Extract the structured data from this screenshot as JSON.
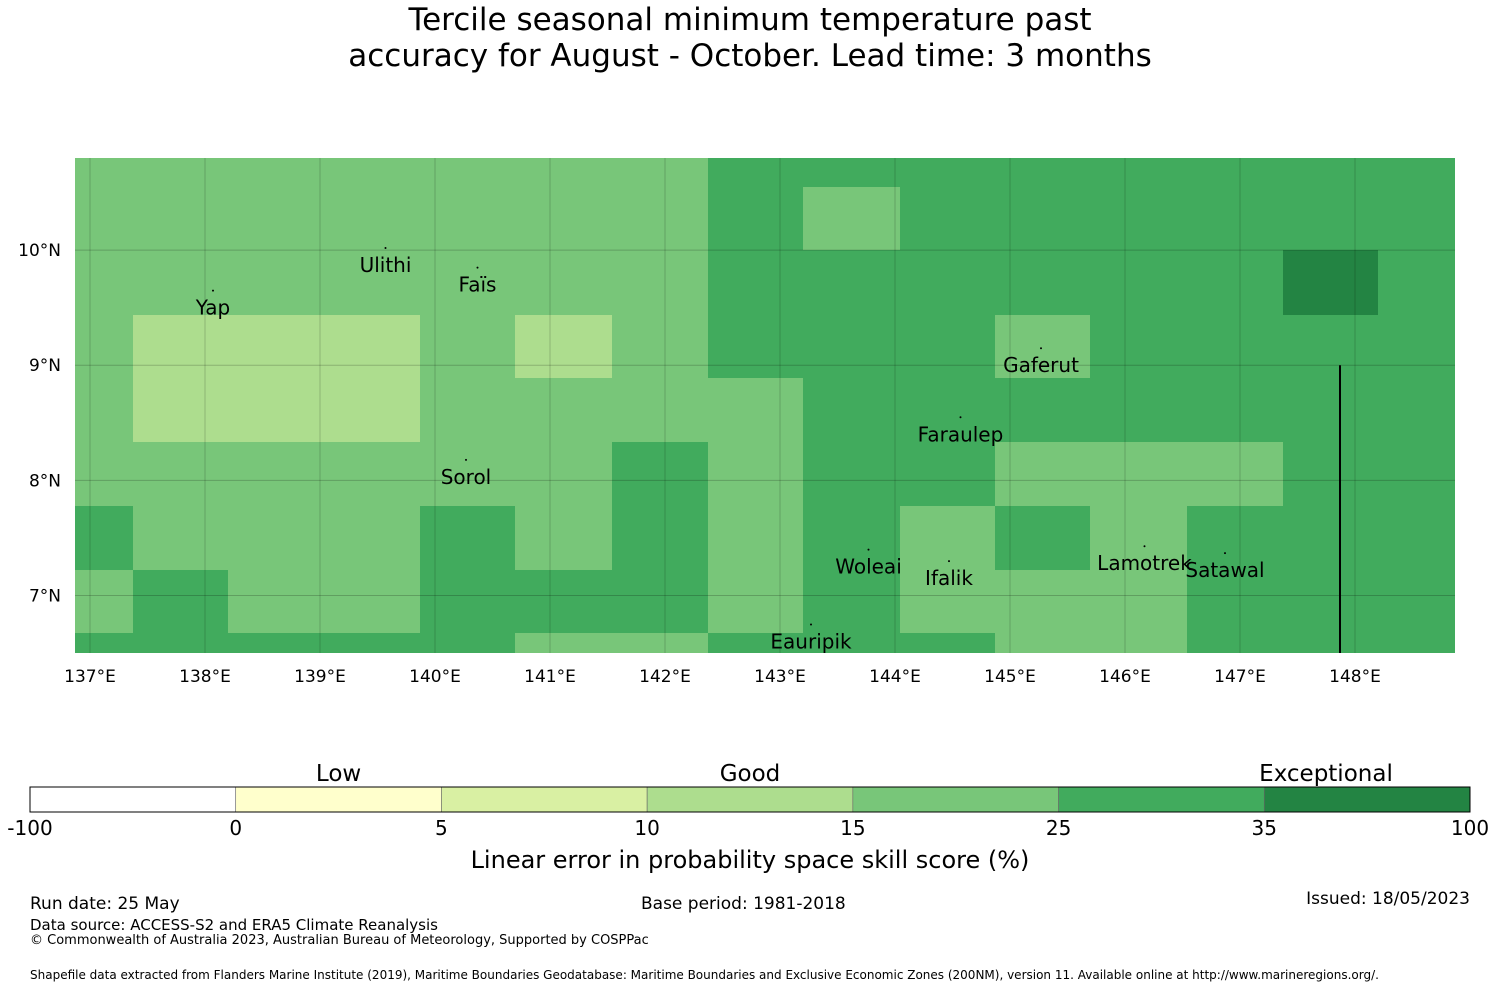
{
  "title": {
    "line1": "Tercile seasonal minimum temperature past",
    "line2": "accuracy for August - October. Lead time: 3 months"
  },
  "map": {
    "lon_range": [
      137,
      149
    ],
    "lat_range": [
      6.5,
      10.8
    ],
    "x_ticks": [
      "137°E",
      "138°E",
      "139°E",
      "140°E",
      "141°E",
      "142°E",
      "143°E",
      "144°E",
      "145°E",
      "146°E",
      "147°E",
      "148°E"
    ],
    "y_ticks": [
      "10°N",
      "9°N",
      "8°N",
      "7°N"
    ],
    "grid": true,
    "cell_lon_edges": [
      137,
      137.5,
      138.33,
      139.17,
      140,
      140.83,
      141.67,
      142.5,
      143.33,
      144.17,
      145,
      145.83,
      146.67,
      147.5,
      148.33,
      149
    ],
    "cell_lat_edges": [
      10.8,
      10.55,
      10,
      9.44,
      8.89,
      8.33,
      7.78,
      7.22,
      6.67,
      6.5
    ],
    "skill_class_colors": [
      "#ffffff",
      "#ffffcc",
      "#d9f0a3",
      "#addd8e",
      "#78c679",
      "#41ab5d",
      "#238443"
    ],
    "skill_classes": [
      [
        4,
        4,
        4,
        4,
        4,
        4,
        4,
        5,
        5,
        5,
        5,
        5,
        5,
        5,
        5
      ],
      [
        4,
        4,
        4,
        4,
        4,
        4,
        4,
        5,
        4,
        5,
        5,
        5,
        5,
        5,
        5
      ],
      [
        4,
        4,
        4,
        4,
        4,
        4,
        4,
        5,
        5,
        5,
        5,
        5,
        5,
        6,
        5
      ],
      [
        4,
        3,
        3,
        3,
        4,
        3,
        4,
        5,
        5,
        5,
        4,
        5,
        5,
        5,
        5
      ],
      [
        4,
        3,
        3,
        3,
        4,
        4,
        4,
        4,
        5,
        5,
        5,
        5,
        5,
        5,
        5
      ],
      [
        4,
        4,
        4,
        4,
        4,
        4,
        5,
        4,
        5,
        5,
        4,
        4,
        4,
        5,
        5
      ],
      [
        5,
        4,
        4,
        4,
        5,
        4,
        5,
        4,
        5,
        4,
        5,
        4,
        5,
        5,
        5
      ],
      [
        4,
        5,
        4,
        4,
        5,
        5,
        5,
        4,
        5,
        4,
        4,
        4,
        5,
        5,
        5
      ],
      [
        5,
        5,
        5,
        5,
        5,
        4,
        4,
        5,
        5,
        5,
        4,
        4,
        5,
        5,
        5
      ]
    ],
    "boundary_line_lon": 148,
    "boundary_line_lat": [
      6.5,
      9
    ],
    "places": [
      {
        "name": "Yap",
        "lon": 138.2,
        "lat": 9.5
      },
      {
        "name": "Ulithi",
        "lon": 139.7,
        "lat": 9.87
      },
      {
        "name": "Faïs",
        "lon": 140.5,
        "lat": 9.7
      },
      {
        "name": "Gaferut",
        "lon": 145.4,
        "lat": 9.0
      },
      {
        "name": "Faraulep",
        "lon": 144.7,
        "lat": 8.4
      },
      {
        "name": "Sorol",
        "lon": 140.4,
        "lat": 8.03
      },
      {
        "name": "Woleai",
        "lon": 143.9,
        "lat": 7.25
      },
      {
        "name": "Ifalik",
        "lon": 144.6,
        "lat": 7.15
      },
      {
        "name": "Lamotrek",
        "lon": 146.3,
        "lat": 7.28
      },
      {
        "name": "Satawal",
        "lon": 147.0,
        "lat": 7.22
      },
      {
        "name": "Eauripik",
        "lon": 143.4,
        "lat": 6.6
      }
    ]
  },
  "colorbar": {
    "category_labels": [
      "Low",
      "Good",
      "Exceptional"
    ],
    "tick_labels": [
      "-100",
      "0",
      "5",
      "10",
      "15",
      "25",
      "35",
      "100"
    ],
    "colors": [
      "#ffffff",
      "#ffffcc",
      "#d9f0a3",
      "#addd8e",
      "#78c679",
      "#41ab5d",
      "#238443"
    ],
    "label": "Linear error in probability space skill score (%)"
  },
  "footer": {
    "run_date": "Run date: 25 May",
    "base_period": "Base period: 1981-2018",
    "issued": "Issued: 18/05/2023",
    "data_source": "Data source: ACCESS-S2 and ERA5 Climate Reanalysis",
    "copyright": "© Commonwealth of Australia 2023, Australian Bureau of Meteorology, Supported by COSPPac",
    "shapefile": "Shapefile data extracted from Flanders Marine Institute (2019), Maritime Boundaries Geodatabase: Maritime Boundaries and Exclusive Economic Zones (200NM), version 11. Available online at http://www.marineregions.org/."
  }
}
